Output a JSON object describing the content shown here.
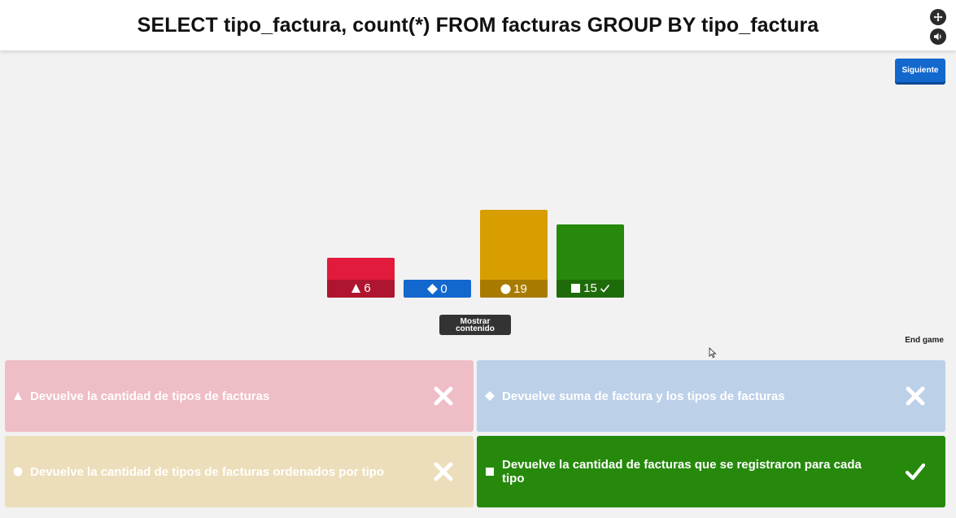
{
  "question": {
    "title": "SELECT tipo_factura, count(*) FROM facturas GROUP BY tipo_factura"
  },
  "controls": {
    "fullscreen_icon": "expand-icon",
    "sound_icon": "speaker-icon",
    "next_label": "Siguiente",
    "reveal_label_line1": "Mostrar",
    "reveal_label_line2": "contenido",
    "end_game_label": "End game"
  },
  "chart_data": {
    "type": "bar",
    "categories": [
      "triangle",
      "diamond",
      "circle",
      "square"
    ],
    "values": [
      6,
      0,
      19,
      15
    ],
    "colors": [
      "#e21b3c",
      "#1368ce",
      "#d89e00",
      "#26890c"
    ],
    "correct": [
      false,
      false,
      false,
      true
    ],
    "ylim": [
      0,
      19
    ]
  },
  "answers": [
    {
      "shape": "triangle",
      "text": "Devuelve la cantidad de tipos de facturas",
      "correct": false,
      "color": "#efbdc6"
    },
    {
      "shape": "diamond",
      "text": "Devuelve suma de factura y los tipos de facturas",
      "correct": false,
      "color": "#bcd0e8"
    },
    {
      "shape": "circle",
      "text": "Devuelve la cantidad de tipos de facturas ordenados por tipo",
      "correct": false,
      "color": "#ecdeba"
    },
    {
      "shape": "square",
      "text": "Devuelve la cantidad de facturas que se registraron para cada tipo",
      "correct": true,
      "color": "#26890c"
    }
  ]
}
